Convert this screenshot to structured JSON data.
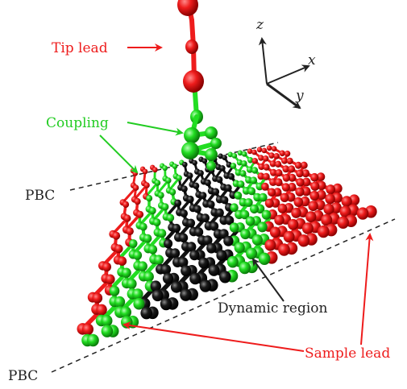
{
  "labels": {
    "tip_lead": "Tip lead",
    "coupling": "Coupling",
    "pbc_top": "PBC",
    "pbc_bottom": "PBC",
    "dynamic_region": "Dynamic region",
    "sample_lead": "Sample lead"
  },
  "axes": {
    "z": "z",
    "x": "x",
    "y": "y"
  },
  "colors": {
    "lead": "#ee1c1c",
    "coupling": "#22dd22",
    "dynamic": "#111111",
    "text_red": "#ee1c1c",
    "text_green": "#22cc22",
    "text_dark": "#222222"
  }
}
